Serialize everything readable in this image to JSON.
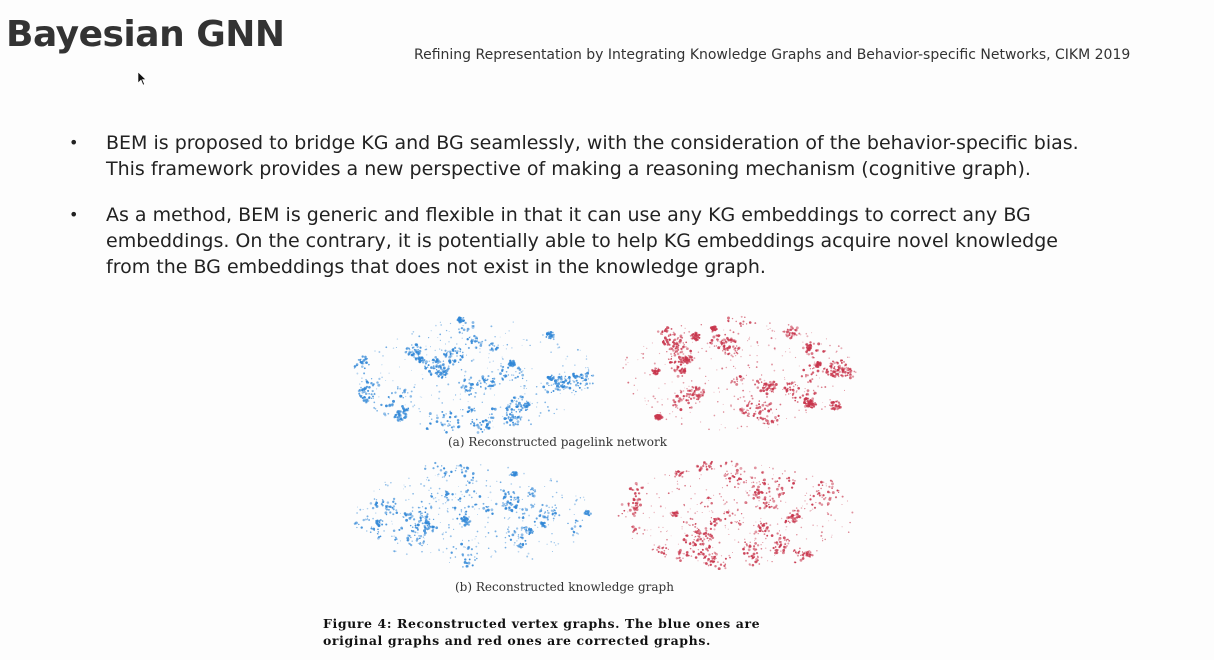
{
  "slide": {
    "title": "Bayesian GNN",
    "reference": "Refining Representation by Integrating Knowledge Graphs and Behavior-specific Networks, CIKM 2019",
    "bullets": [
      {
        "lines": [
          "BEM is proposed to bridge KG and BG seamlessly, with the consideration of the behavior-specific bias.",
          "This framework provides a new perspective of making a reasoning mechanism (cognitive graph)."
        ]
      },
      {
        "lines": [
          "As a method, BEM is generic and flexible in that it can use any KG embeddings to correct any BG",
          "embeddings. On the contrary, it is potentially able to help KG embeddings acquire novel knowledge",
          "from the BG embeddings that does not exist in the knowledge graph."
        ]
      }
    ],
    "figure": {
      "subcaption_a": "(a) Reconstructed pagelink network",
      "subcaption_b": "(b) Reconstructed knowledge graph",
      "caption_lines": [
        "Figure 4:  Reconstructed vertex graphs.  The blue ones are",
        "original graphs and red ones are corrected graphs."
      ],
      "colors": {
        "original": "#2f86d6",
        "corrected": "#c8354c"
      }
    },
    "icons": {
      "cursor": "mouse-pointer-icon"
    }
  }
}
